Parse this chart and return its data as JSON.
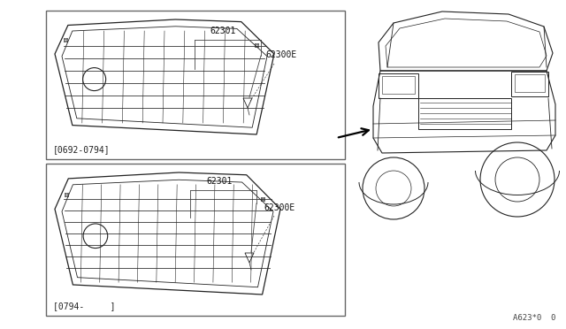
{
  "background_color": "#ffffff",
  "line_color": "#222222",
  "border_color": "#666666",
  "date_top": "[0692-0794]",
  "date_bot": "[0794-     ]",
  "diagram_id": "A623*0  0",
  "label_62301_top": "62301",
  "label_62300E_top": "62300E",
  "label_62301_bot": "62301",
  "label_62300E_bot": "62300E"
}
